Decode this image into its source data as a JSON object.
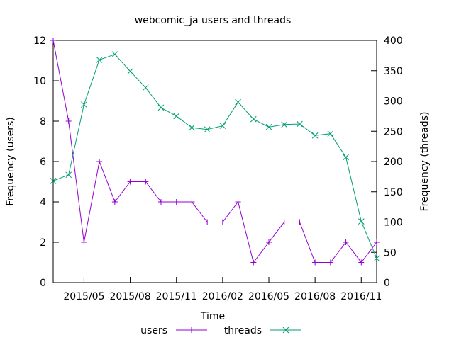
{
  "chart_data": {
    "type": "line",
    "title": "webcomic_ja users and threads",
    "xlabel": "Time",
    "ylabel": "Frequency (users)",
    "y2label": "Frequency (threads)",
    "x": [
      "2015-03",
      "2015-04",
      "2015-05",
      "2015-06",
      "2015-07",
      "2015-08",
      "2015-09",
      "2015-10",
      "2015-11",
      "2015-12",
      "2016-01",
      "2016-02",
      "2016-03",
      "2016-04",
      "2016-05",
      "2016-06",
      "2016-07",
      "2016-08",
      "2016-09",
      "2016-10",
      "2016-11",
      "2016-12"
    ],
    "x_ticks": [
      "2015/05",
      "2015/08",
      "2015/11",
      "2016/02",
      "2016/05",
      "2016/08",
      "2016/11"
    ],
    "ylim": [
      0,
      12
    ],
    "y_ticks": [
      "0",
      "2",
      "4",
      "6",
      "8",
      "10",
      "12"
    ],
    "y2lim": [
      0,
      400
    ],
    "y2_ticks": [
      "0",
      "50",
      "100",
      "150",
      "200",
      "250",
      "300",
      "350",
      "400"
    ],
    "series": [
      {
        "name": "users",
        "axis": "left",
        "color": "#9400d3",
        "marker": "plus",
        "values": [
          12,
          8,
          2,
          6,
          4,
          5,
          5,
          4,
          4,
          4,
          3,
          3,
          4,
          1,
          2,
          3,
          3,
          1,
          1,
          2,
          1,
          2
        ]
      },
      {
        "name": "threads",
        "axis": "right",
        "color": "#009e73",
        "marker": "cross",
        "values": [
          168,
          178,
          294,
          368,
          377,
          349,
          322,
          289,
          275,
          256,
          253,
          259,
          298,
          270,
          257,
          261,
          262,
          243,
          246,
          207,
          101,
          40
        ]
      }
    ],
    "legend": "bottom",
    "grid": false
  }
}
